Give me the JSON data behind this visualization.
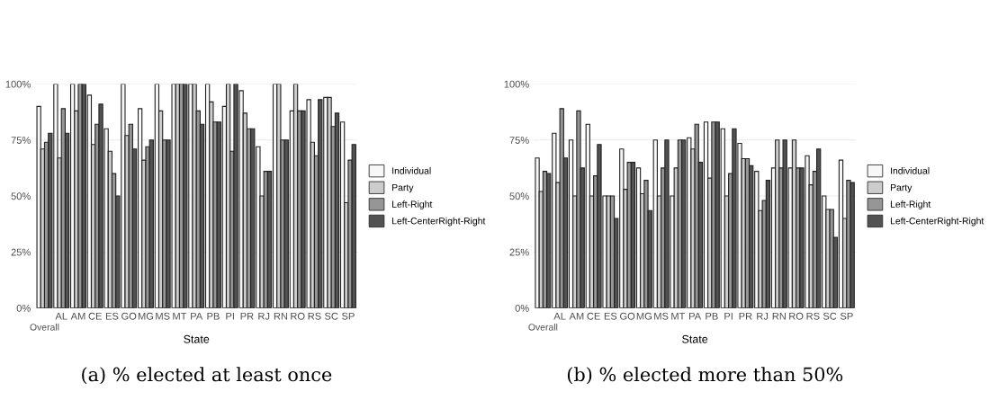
{
  "chart_data": [
    {
      "type": "bar",
      "xlabel": "State",
      "annotations": [
        "(a) % elected at least once"
      ],
      "legend": "right",
      "grid": "y",
      "categories": [
        "Overall",
        "AL",
        "AM",
        "CE",
        "ES",
        "GO",
        "MG",
        "MS",
        "MT",
        "PA",
        "PB",
        "PI",
        "PR",
        "RJ",
        "RN",
        "RO",
        "RS",
        "SC",
        "SP"
      ],
      "ylim": [
        0,
        100
      ],
      "yticks": [
        {
          "value": 0,
          "label": "0%"
        },
        {
          "value": 25,
          "label": "25%"
        },
        {
          "value": 50,
          "label": "50%"
        },
        {
          "value": 75,
          "label": "75%"
        },
        {
          "value": 100,
          "label": "100%"
        }
      ],
      "series": [
        {
          "name": "Individual",
          "color": "#f7f7f7",
          "values": [
            90,
            100,
            100,
            95,
            80,
            100,
            89,
            100,
            100,
            100,
            100,
            90,
            97,
            72,
            100,
            88,
            93,
            94,
            83
          ]
        },
        {
          "name": "Party",
          "color": "#cccccc",
          "values": [
            71,
            67,
            88,
            73,
            70,
            77,
            66,
            88,
            100,
            100,
            92,
            100,
            87,
            50,
            100,
            100,
            74,
            94,
            47
          ]
        },
        {
          "name": "Left-Right",
          "color": "#969696",
          "values": [
            74,
            89,
            100,
            82,
            60,
            82,
            72,
            75,
            100,
            88,
            83,
            70,
            80,
            61,
            75,
            88,
            68,
            81,
            66
          ]
        },
        {
          "name": "Left-CenterRight-Right",
          "color": "#525252",
          "values": [
            78,
            78,
            100,
            91,
            50,
            71,
            75,
            75,
            100,
            82,
            83,
            100,
            80,
            61,
            75,
            88,
            93,
            87,
            73
          ]
        }
      ]
    },
    {
      "type": "bar",
      "xlabel": "State",
      "annotations": [
        "(b) % elected more than 50%"
      ],
      "legend": "right",
      "grid": "y",
      "categories": [
        "Overall",
        "AL",
        "AM",
        "CE",
        "ES",
        "GO",
        "MG",
        "MS",
        "MT",
        "PA",
        "PB",
        "PI",
        "PR",
        "RJ",
        "RN",
        "RO",
        "RS",
        "SC",
        "SP"
      ],
      "ylim": [
        0,
        100
      ],
      "yticks": [
        {
          "value": 0,
          "label": "0%"
        },
        {
          "value": 25,
          "label": "25%"
        },
        {
          "value": 50,
          "label": "50%"
        },
        {
          "value": 75,
          "label": "75%"
        },
        {
          "value": 100,
          "label": "100%"
        }
      ],
      "series": [
        {
          "name": "Individual",
          "color": "#f7f7f7",
          "values": [
            67,
            78,
            75,
            82,
            50,
            71,
            62.5,
            75,
            50,
            76,
            83,
            80,
            73.5,
            61,
            62.5,
            62.5,
            68,
            50,
            66
          ]
        },
        {
          "name": "Party",
          "color": "#cccccc",
          "values": [
            52,
            56,
            50,
            50,
            50,
            53,
            51,
            50,
            62.5,
            71,
            58,
            50,
            66.7,
            43.5,
            75,
            75,
            55,
            44,
            40
          ]
        },
        {
          "name": "Left-Right",
          "color": "#969696",
          "values": [
            61,
            89,
            88,
            59,
            50,
            65,
            57,
            62.5,
            75,
            82,
            83,
            60,
            66.7,
            48,
            62.5,
            62.5,
            61,
            44,
            57
          ]
        },
        {
          "name": "Left-CenterRight-Right",
          "color": "#525252",
          "values": [
            60,
            67,
            62.5,
            73,
            40,
            65,
            43.5,
            75,
            75,
            65,
            83,
            80,
            63.5,
            57,
            75,
            62.5,
            71,
            31.5,
            56
          ]
        }
      ]
    }
  ]
}
